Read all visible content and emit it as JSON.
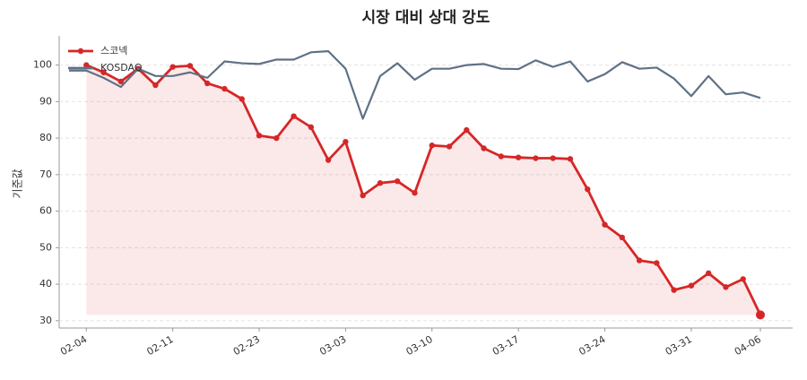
{
  "chart_data": {
    "type": "line",
    "title": "시장 대비 상대 강도",
    "y_label": "기준값",
    "categories": [
      null,
      "02-04",
      null,
      null,
      null,
      null,
      "02-11",
      null,
      null,
      null,
      null,
      "02-23",
      null,
      null,
      null,
      null,
      "03-03",
      null,
      null,
      null,
      null,
      "03-10",
      null,
      null,
      null,
      null,
      "03-17",
      null,
      null,
      null,
      null,
      "03-24",
      null,
      null,
      null,
      null,
      "03-31",
      null,
      null,
      null,
      "04-06"
    ],
    "series": [
      {
        "name": "스코넥",
        "color": "#d62728",
        "fill": true,
        "values": [
          null,
          100,
          98,
          95.5,
          99,
          94.5,
          99.5,
          99.8,
          95,
          93.5,
          90.7,
          80.7,
          80,
          86,
          83,
          74,
          79,
          64.3,
          67.7,
          68.2,
          65,
          78,
          77.7,
          82.2,
          77.2,
          75,
          74.7,
          74.5,
          74.5,
          74.3,
          66,
          56.3,
          52.8,
          46.5,
          45.8,
          38.4,
          39.6,
          43,
          39.2,
          41.4,
          31.6
        ]
      },
      {
        "name": "KOSDAQ",
        "color": "#5f7185",
        "values": [
          98.5,
          98.5,
          96.5,
          94,
          99,
          97,
          97,
          98,
          96.5,
          101,
          100.5,
          100.3,
          101.5,
          101.5,
          103.5,
          103.8,
          99,
          85.3,
          97,
          100.5,
          96,
          99,
          99,
          100,
          100.3,
          99,
          98.9,
          101.3,
          99.5,
          101,
          95.5,
          97.5,
          100.8,
          99,
          99.3,
          96.3,
          91.5,
          97,
          92,
          92.5,
          91
        ]
      }
    ],
    "ylim": [
      28,
      108
    ],
    "yticks": [
      30,
      40,
      50,
      60,
      70,
      80,
      90,
      100
    ],
    "grid": true,
    "legend": "upper-left"
  }
}
